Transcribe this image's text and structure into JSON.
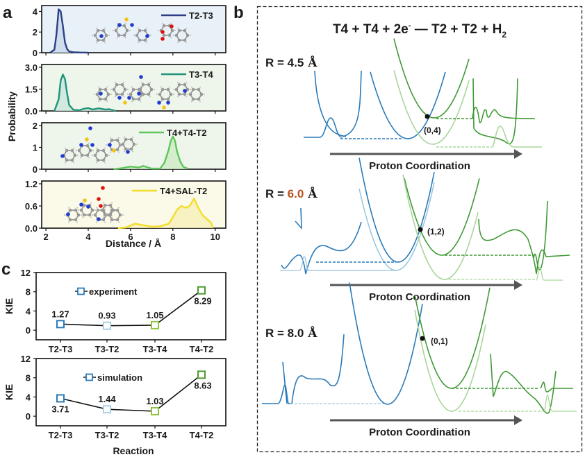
{
  "figure": {
    "panel_labels": {
      "a": "a",
      "b": "b",
      "c": "c"
    }
  },
  "chart_data": [
    {
      "id": "panel-a",
      "type": "area",
      "xlabel": "Distance / Å",
      "ylabel": "Probability",
      "xlim": [
        1.8,
        10.5
      ],
      "xticks": [
        2,
        4,
        6,
        8,
        10
      ],
      "subplots": [
        {
          "name": "T2-T3",
          "color": "#2d3f86",
          "fill": "#c7d9e8",
          "bg": "#e9f1f8",
          "ylim": [
            0,
            4.3
          ],
          "yticks": [
            "0",
            "2",
            "4"
          ],
          "ytick_values": [
            0,
            2,
            4
          ],
          "inset_molecule": "T2 + SAL",
          "x": [
            2.2,
            2.4,
            2.5,
            2.6,
            2.7,
            2.8,
            2.9,
            3.0,
            3.1,
            3.3,
            3.6,
            4.0
          ],
          "y": [
            0,
            0.3,
            1.8,
            4.2,
            4.0,
            2.6,
            1.0,
            0.35,
            0.12,
            0.05,
            0.02,
            0.01
          ]
        },
        {
          "name": "T3-T4",
          "color": "#1f9479",
          "fill": "#c9e6dc",
          "bg": "#eef5ea",
          "ylim": [
            0,
            3.0
          ],
          "yticks": [
            "0.0",
            "1.5",
            "3.0"
          ],
          "ytick_values": [
            0,
            1.5,
            3.0
          ],
          "inset_molecule": "T3 + T4",
          "x": [
            2.4,
            2.6,
            2.7,
            2.8,
            2.9,
            3.0,
            3.1,
            3.3,
            3.6,
            3.8,
            4.0,
            4.2,
            4.5,
            4.8,
            5.0,
            5.3
          ],
          "y": [
            0,
            0.8,
            2.1,
            2.5,
            2.2,
            1.2,
            0.4,
            0.08,
            0.05,
            0.15,
            0.2,
            0.1,
            0.18,
            0.1,
            0.12,
            0
          ]
        },
        {
          "name": "T4+T4-T2",
          "color": "#5ec65a",
          "fill": "#cdebc6",
          "bg": "#eef5ea",
          "ylim": [
            0,
            2
          ],
          "yticks": [
            "0",
            "1",
            "2"
          ],
          "ytick_values": [
            0,
            1,
            2
          ],
          "inset_molecule": "T4 + T4",
          "x": [
            5.2,
            5.6,
            6.0,
            6.4,
            6.6,
            7.0,
            7.4,
            7.6,
            7.8,
            7.9,
            8.0,
            8.1,
            8.2,
            8.35,
            8.5,
            8.7
          ],
          "y": [
            0,
            0.05,
            0.12,
            0.08,
            0.15,
            0.03,
            0.03,
            0.3,
            0.9,
            1.3,
            1.5,
            1.3,
            0.8,
            0.35,
            0.1,
            0.03
          ]
        },
        {
          "name": "T4+SAL-T2",
          "color": "#f2de2a",
          "fill": "#f7efb8",
          "bg": "#fbf9e7",
          "ylim": [
            0,
            1.2
          ],
          "yticks": [
            "0.0",
            "0.6",
            "1.2"
          ],
          "ytick_values": [
            0,
            0.6,
            1.2
          ],
          "inset_molecule": "T4 + SAL",
          "x": [
            5.4,
            5.8,
            6.2,
            6.6,
            7.0,
            7.4,
            7.8,
            8.0,
            8.2,
            8.4,
            8.6,
            8.8,
            9.0,
            9.2,
            9.4,
            9.6,
            9.8,
            9.9
          ],
          "y": [
            0,
            0.02,
            0.12,
            0.08,
            0.04,
            0.05,
            0.12,
            0.3,
            0.5,
            0.6,
            0.55,
            0.6,
            0.8,
            0.55,
            0.35,
            0.25,
            0.15,
            0
          ]
        }
      ]
    },
    {
      "id": "panel-c",
      "type": "line",
      "xlabel": "Reaction",
      "ylabel": "KIE",
      "ylim": [
        -2,
        12
      ],
      "yticks": [
        0,
        4,
        8,
        12
      ],
      "categories": [
        "T2-T3",
        "T3-T2",
        "T3-T4",
        "T4-T2"
      ],
      "marker_colors": [
        "#2a7ab8",
        "#a9d3e3",
        "#8cc63f",
        "#4e9a2f"
      ],
      "series": [
        {
          "name": "experiment",
          "values": [
            1.27,
            0.93,
            1.05,
            8.29
          ],
          "labels": [
            "1.27",
            "0.93",
            "1.05",
            "8.29"
          ]
        },
        {
          "name": "simulation",
          "values": [
            3.71,
            1.44,
            1.03,
            8.63
          ],
          "labels": [
            "3.71",
            "1.44",
            "1.03",
            "8.63"
          ]
        }
      ]
    },
    {
      "id": "panel-b",
      "type": "line",
      "title_parts": {
        "main": "T4 + T4 + 2e",
        "sup": "-",
        "rest": " — T2 + T2 + H",
        "sub": "2"
      },
      "arrow_label": "Proton Coordination",
      "rows": [
        {
          "r_prefix": "R = ",
          "r_value": "4.5",
          "r_unit": " Å",
          "r_color": "#1a1a1a",
          "crossing_label": "(0,4)"
        },
        {
          "r_prefix": "R = ",
          "r_value": "6.0",
          "r_unit": " Å",
          "r_color": "#b5521c",
          "crossing_label": "(1,2)"
        },
        {
          "r_prefix": "R = ",
          "r_value": "8.0",
          "r_unit": " Å",
          "r_color": "#1a1a1a",
          "crossing_label": "(0,1)"
        }
      ],
      "colors": {
        "blue": "#2a7ab8",
        "light_blue": "#9cc7df",
        "green": "#3f9a35",
        "light_green": "#a8d69b",
        "arrow": "#555555"
      }
    }
  ]
}
